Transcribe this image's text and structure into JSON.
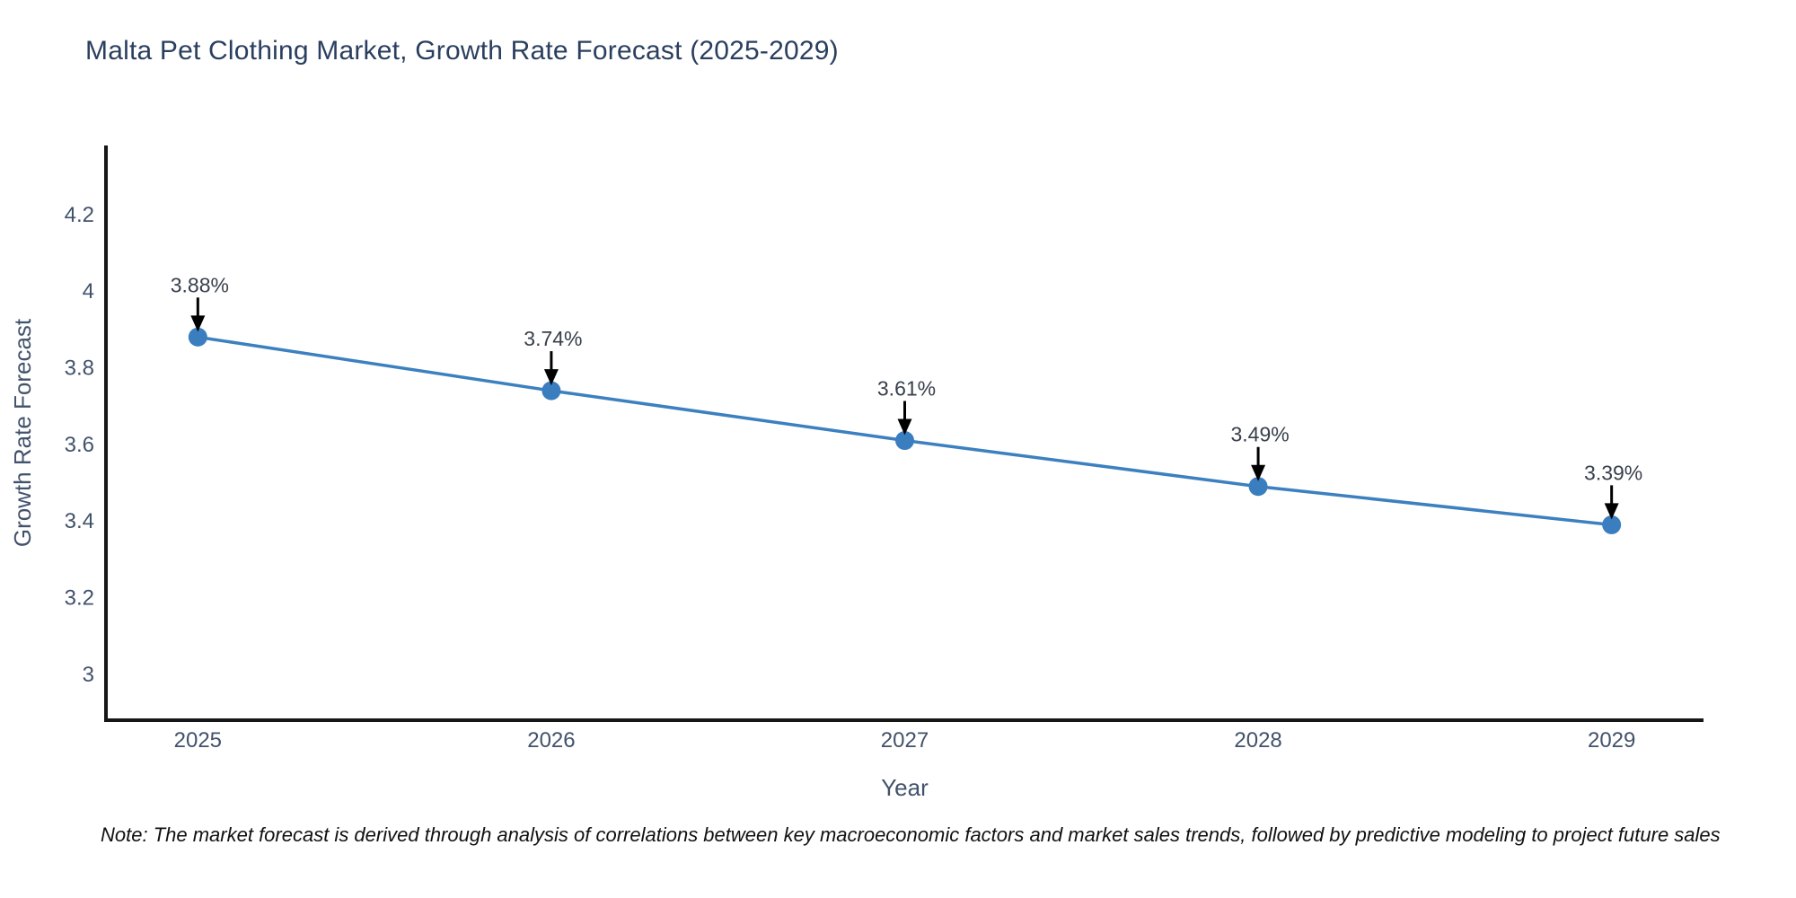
{
  "title": "Malta Pet Clothing Market, Growth Rate Forecast (2025-2029)",
  "note": "Note: The market forecast is derived through analysis of correlations between key macroeconomic factors and market sales trends, followed by predictive modeling to project future sales",
  "chart_data": {
    "type": "line",
    "title": "Malta Pet Clothing Market, Growth Rate Forecast (2025-2029)",
    "xlabel": "Year",
    "ylabel": "Growth Rate Forecast",
    "x": [
      2025,
      2026,
      2027,
      2028,
      2029
    ],
    "series": [
      {
        "name": "Growth Rate Forecast",
        "values": [
          3.88,
          3.74,
          3.61,
          3.49,
          3.39
        ]
      }
    ],
    "point_labels": [
      "3.88%",
      "3.74%",
      "3.61%",
      "3.49%",
      "3.39%"
    ],
    "x_ticks": [
      "2025",
      "2026",
      "2027",
      "2028",
      "2029"
    ],
    "y_ticks": [
      "4.2",
      "4",
      "3.8",
      "3.6",
      "3.4",
      "3.2",
      "3"
    ],
    "xlim": [
      2024.74,
      2029.26
    ],
    "ylim": [
      2.88,
      4.38
    ],
    "grid": false,
    "legend_position": "none",
    "line_color": "#3c80bf",
    "marker_color": "#3a7ebf",
    "axis_line_color": "#161616",
    "annotation_color": "#000000"
  }
}
